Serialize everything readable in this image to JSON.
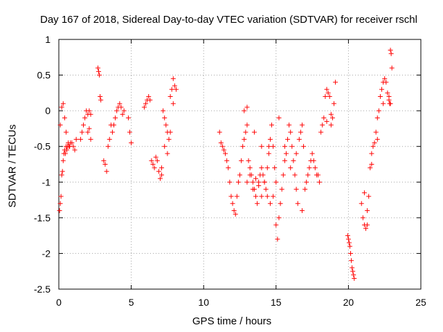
{
  "chart_data": {
    "type": "scatter",
    "title": "Day 167 of 2018, Sidereal Day-to-day VTEC variation (SDTVAR) for receiver rschl",
    "xlabel": "GPS time / hours",
    "ylabel": "SDTVAR / TECUs",
    "xlim": [
      0,
      25
    ],
    "ylim": [
      -2.5,
      1
    ],
    "xticks": [
      0,
      5,
      10,
      15,
      20,
      25
    ],
    "yticks": [
      -2.5,
      -2,
      -1.5,
      -1,
      -0.5,
      0,
      0.5,
      1
    ],
    "xtick_labels": [
      "0",
      "5",
      "10",
      "15",
      "20",
      "25"
    ],
    "ytick_labels": [
      "-2.5",
      "-2",
      "-1.5",
      "-1",
      "-0.5",
      "0",
      "0.5",
      "1"
    ],
    "grid": true,
    "marker": "+",
    "color": "#ff0000",
    "series": [
      {
        "name": "SDTVAR",
        "x": [
          0.05,
          0.1,
          0.15,
          0.2,
          0.25,
          0.3,
          0.35,
          0.4,
          0.45,
          0.5,
          0.55,
          0.6,
          0.65,
          0.7,
          0.75,
          0.8,
          0.9,
          1.0,
          1.1,
          1.2,
          0.1,
          0.2,
          0.3,
          0.4,
          0.5,
          1.5,
          1.6,
          1.7,
          1.8,
          1.9,
          2.0,
          2.1,
          2.2,
          2.0,
          2.1,
          2.2,
          2.7,
          2.75,
          2.8,
          2.85,
          2.9,
          3.1,
          3.2,
          3.3,
          3.4,
          3.5,
          3.6,
          3.7,
          3.8,
          3.9,
          4.0,
          4.1,
          4.2,
          4.3,
          4.4,
          4.5,
          4.8,
          4.9,
          5.0,
          5.9,
          6.0,
          6.1,
          6.2,
          6.3,
          6.4,
          6.5,
          6.6,
          6.7,
          6.8,
          6.9,
          7.0,
          7.1,
          7.2,
          7.3,
          7.4,
          7.5,
          7.6,
          7.7,
          7.8,
          7.9,
          8.0,
          8.1,
          7.1,
          7.3,
          7.5,
          7.7,
          7.9,
          11.1,
          11.2,
          11.3,
          11.4,
          11.5,
          11.6,
          11.7,
          11.8,
          11.9,
          12.0,
          12.1,
          12.2,
          12.3,
          12.4,
          12.5,
          12.6,
          12.7,
          12.8,
          12.9,
          13.0,
          13.1,
          13.2,
          13.3,
          13.4,
          13.5,
          13.6,
          13.7,
          13.8,
          13.9,
          14.0,
          14.1,
          14.2,
          14.3,
          14.4,
          14.5,
          14.6,
          14.7,
          14.8,
          14.9,
          15.0,
          13.0,
          13.2,
          13.4,
          13.6,
          13.8,
          14.0,
          14.2,
          14.4,
          14.6,
          14.8,
          12.8,
          13.0,
          13.5,
          14.0,
          14.5,
          15.0,
          15.1,
          15.2,
          15.3,
          15.4,
          15.5,
          15.6,
          15.7,
          15.8,
          15.9,
          16.0,
          16.1,
          16.2,
          16.3,
          16.4,
          16.5,
          16.6,
          16.7,
          16.8,
          16.9,
          15.2,
          15.6,
          16.0,
          16.4,
          16.8,
          17.0,
          17.1,
          17.2,
          17.3,
          17.4,
          17.5,
          17.6,
          17.7,
          17.8,
          18.1,
          18.2,
          18.3,
          18.4,
          18.5,
          18.6,
          18.7,
          18.8,
          18.9,
          19.0,
          19.1,
          17.9,
          18.0,
          18.5,
          18.8,
          19.95,
          20.0,
          20.05,
          20.1,
          20.15,
          20.2,
          20.25,
          20.3,
          20.35,
          20.4,
          20.9,
          21.0,
          21.1,
          21.2,
          21.3,
          21.4,
          21.5,
          21.6,
          21.7,
          21.8,
          21.9,
          22.0,
          22.1,
          22.2,
          22.3,
          22.4,
          22.5,
          22.6,
          22.7,
          22.8,
          22.85,
          22.9,
          22.95,
          23.0,
          21.1,
          21.3,
          21.6,
          22.0,
          22.4,
          22.8,
          22.9
        ],
        "y": [
          -1.4,
          -1.3,
          -1.2,
          -0.9,
          -0.85,
          -0.7,
          -0.6,
          -0.55,
          -0.6,
          -0.5,
          -0.55,
          -0.5,
          -0.45,
          -0.5,
          -0.5,
          -0.45,
          -0.45,
          -0.5,
          -0.55,
          -0.4,
          -0.2,
          0.05,
          0.1,
          -0.1,
          -0.3,
          -0.4,
          -0.3,
          -0.2,
          -0.1,
          0.0,
          -0.05,
          0.0,
          -0.05,
          -0.3,
          -0.25,
          -0.4,
          0.6,
          0.55,
          0.5,
          0.2,
          0.15,
          -0.7,
          -0.75,
          -0.85,
          -0.5,
          -0.4,
          -0.2,
          -0.3,
          -0.2,
          -0.1,
          0.0,
          0.05,
          0.1,
          0.05,
          -0.05,
          0.0,
          -0.1,
          -0.3,
          -0.45,
          0.05,
          0.1,
          0.15,
          0.2,
          0.15,
          -0.7,
          -0.75,
          -0.8,
          -0.65,
          -0.7,
          -0.85,
          -0.95,
          -0.9,
          0.0,
          -0.1,
          -0.2,
          -0.3,
          -0.4,
          0.2,
          0.3,
          0.45,
          0.35,
          0.3,
          -0.8,
          -0.5,
          -0.6,
          -0.3,
          0.1,
          -0.3,
          -0.45,
          -0.5,
          -0.55,
          -0.6,
          -0.7,
          -0.8,
          -1.0,
          -1.2,
          -1.3,
          -1.4,
          -1.45,
          -1.2,
          -1.0,
          -0.9,
          -0.7,
          -0.5,
          -0.4,
          -0.3,
          -0.2,
          -0.7,
          -0.8,
          -0.9,
          -1.0,
          -1.1,
          -1.2,
          -1.3,
          -1.0,
          -0.9,
          -0.8,
          -0.9,
          -1.0,
          -1.1,
          -1.2,
          -0.5,
          -0.4,
          -0.2,
          -0.5,
          -0.8,
          -1.0,
          -1.0,
          -0.9,
          -1.1,
          -0.95,
          -1.05,
          -1.2,
          -1.0,
          -0.8,
          -1.3,
          -1.2,
          0.0,
          0.05,
          -0.3,
          -0.5,
          -0.6,
          -1.6,
          -1.8,
          -1.5,
          -1.3,
          -1.1,
          -0.9,
          -0.7,
          -0.6,
          -0.4,
          -0.2,
          -0.3,
          -0.5,
          -0.7,
          -0.9,
          -1.1,
          -1.3,
          -0.4,
          -0.3,
          -0.2,
          -0.5,
          -0.1,
          -0.5,
          -0.8,
          -0.6,
          -1.4,
          -1.1,
          -1.0,
          -0.9,
          -0.8,
          -0.7,
          -0.6,
          -0.7,
          -0.8,
          -0.9,
          -0.3,
          -0.2,
          -0.1,
          0.2,
          0.3,
          0.25,
          0.2,
          -0.05,
          -0.1,
          0.1,
          0.4,
          -0.9,
          -1.0,
          -0.15,
          -0.2,
          -1.75,
          -1.8,
          -1.85,
          -1.9,
          -2.0,
          -2.1,
          -2.2,
          -2.25,
          -2.3,
          -2.35,
          -1.3,
          -1.5,
          -1.6,
          -1.65,
          -1.4,
          -1.2,
          -0.8,
          -0.6,
          -0.5,
          -0.45,
          -0.3,
          -0.1,
          0.0,
          0.2,
          0.3,
          0.4,
          0.45,
          0.4,
          0.25,
          0.15,
          0.1,
          0.85,
          0.8,
          0.6,
          -1.15,
          -1.6,
          -0.75,
          -0.4,
          0.1,
          0.2,
          0.1
        ]
      }
    ]
  }
}
